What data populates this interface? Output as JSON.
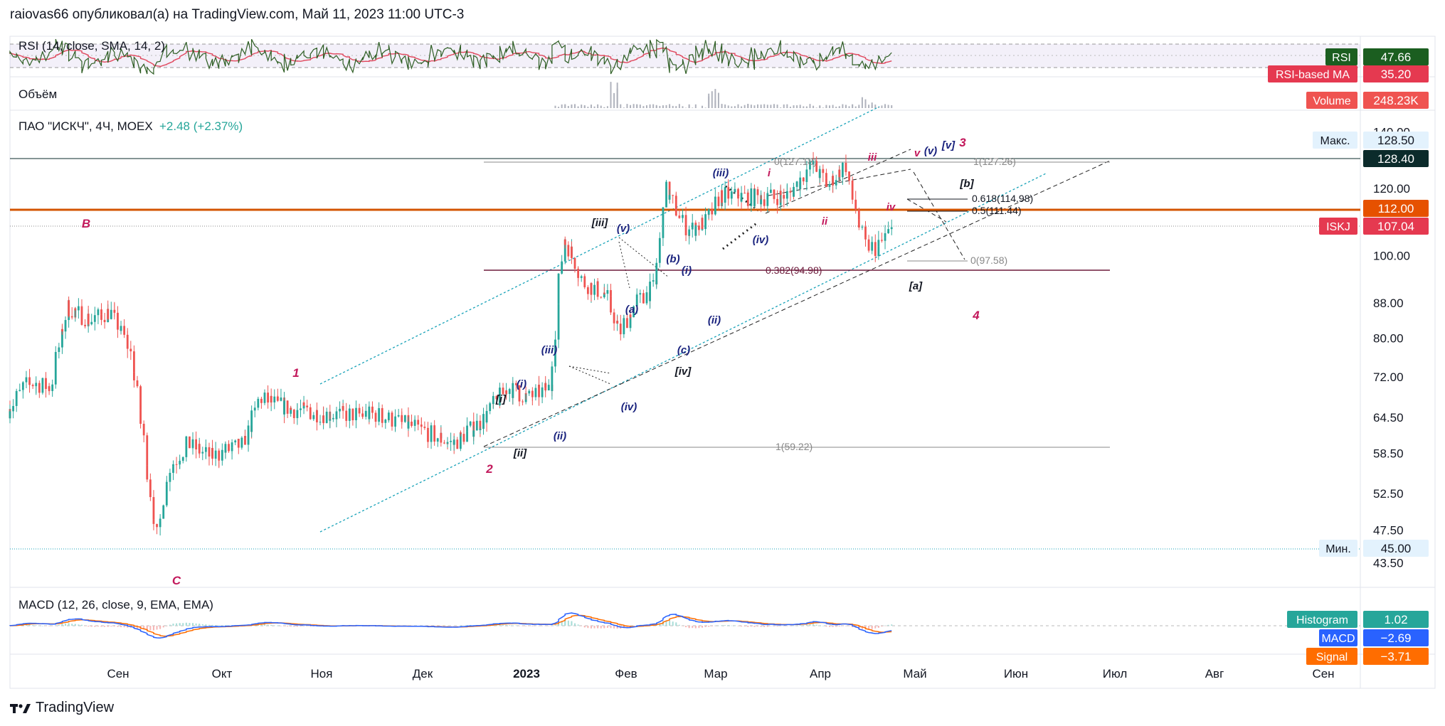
{
  "header": {
    "author_line": "raiovas66 опубликовал(а) на TradingView.com, Май 11, 2023 11:00 UTC-3"
  },
  "footer": {
    "brand": "TradingView"
  },
  "colors": {
    "up": "#26a69a",
    "down": "#ef5350",
    "rsi_line": "#2e5e24",
    "rsi_ma": "#e0495e",
    "macd": "#2962ff",
    "signal": "#ff6d00",
    "channel": "#17a2b8",
    "orange_line": "#d35400",
    "wave_red": "#c2185b",
    "wave_navy": "#1a237e"
  },
  "rsi_pane": {
    "title": "RSI (14, close, SMA, 14, 2)",
    "badges": [
      {
        "label": "RSI",
        "value": "47.66",
        "color": "#1b5e20"
      },
      {
        "label": "RSI-based MA",
        "value": "35.20",
        "color": "#e53950"
      }
    ]
  },
  "volume_pane": {
    "title": "Объём",
    "badge": {
      "label": "Volume",
      "value": "248.23K",
      "color": "#ef5350"
    }
  },
  "main_pane": {
    "symbol": "ПАО \"ИСКЧ\", 4Ч, MOEX",
    "change": "+2.48 (+2.37%)",
    "max_badge": {
      "label": "Макс.",
      "value": "128.50"
    },
    "min_badge": {
      "label": "Мин.",
      "value": "45.00"
    },
    "price_badges": [
      {
        "value": "128.40",
        "color": "#0b2b2b"
      },
      {
        "value": "112.00",
        "color": "#e65100"
      },
      {
        "label": "ISKJ",
        "value": "107.04",
        "color": "#e53950"
      }
    ],
    "price_ticks": [
      "140.00",
      "120.00",
      "100.00",
      "88.00",
      "80.00",
      "72.00",
      "64.50",
      "58.50",
      "52.50",
      "47.50",
      "43.50"
    ]
  },
  "macd_pane": {
    "title": "MACD (12, 26, close, 9, EMA, EMA)",
    "badges": [
      {
        "label": "Histogram",
        "value": "1.02",
        "color": "#26a69a"
      },
      {
        "label": "MACD",
        "value": "−2.69",
        "color": "#2962ff"
      },
      {
        "label": "Signal",
        "value": "−3.71",
        "color": "#ff6d00"
      }
    ]
  },
  "time_axis": {
    "labels": [
      "Сен",
      "Окт",
      "Ноя",
      "Дек",
      "2023",
      "Фев",
      "Мар",
      "Апр",
      "Май",
      "Июн",
      "Июл",
      "Авг",
      "Сен"
    ]
  },
  "fib_labels": [
    {
      "text": "0(127.18)",
      "color": "#888888"
    },
    {
      "text": "1(127.26)",
      "color": "#888888"
    },
    {
      "text": "0.618(114.98)",
      "color": "#131722"
    },
    {
      "text": "0.5(111.44)",
      "color": "#131722"
    },
    {
      "text": "0(97.58)",
      "color": "#888888"
    },
    {
      "text": "0.382(94.98)",
      "color": "#6d1b3c"
    },
    {
      "text": "1(59.22)",
      "color": "#888888"
    }
  ],
  "wave_labels": [
    {
      "text": "B",
      "color": "#c2185b"
    },
    {
      "text": "C",
      "color": "#c2185b"
    },
    {
      "text": "1",
      "color": "#c2185b"
    },
    {
      "text": "2",
      "color": "#c2185b"
    },
    {
      "text": "3",
      "color": "#c2185b"
    },
    {
      "text": "4",
      "color": "#c2185b"
    },
    {
      "text": "[i]",
      "color": "#131722"
    },
    {
      "text": "[ii]",
      "color": "#131722"
    },
    {
      "text": "[iii]",
      "color": "#131722"
    },
    {
      "text": "[iv]",
      "color": "#131722"
    },
    {
      "text": "[v]",
      "color": "#1a237e"
    },
    {
      "text": "[a]",
      "color": "#131722"
    },
    {
      "text": "[b]",
      "color": "#131722"
    },
    {
      "text": "(i)",
      "color": "#1a237e"
    },
    {
      "text": "(ii)",
      "color": "#1a237e"
    },
    {
      "text": "(iii)",
      "color": "#1a237e"
    },
    {
      "text": "(iv)",
      "color": "#1a237e"
    },
    {
      "text": "(i)",
      "color": "#1a237e"
    },
    {
      "text": "(ii)",
      "color": "#1a237e"
    },
    {
      "text": "(iii)",
      "color": "#1a237e"
    },
    {
      "text": "(iv)",
      "color": "#1a237e"
    },
    {
      "text": "(v)",
      "color": "#1a237e"
    },
    {
      "text": "(a)",
      "color": "#1a237e"
    },
    {
      "text": "(b)",
      "color": "#1a237e"
    },
    {
      "text": "(c)",
      "color": "#1a237e"
    },
    {
      "text": "(v)",
      "color": "#1a237e"
    },
    {
      "text": "i",
      "color": "#c2185b"
    },
    {
      "text": "ii",
      "color": "#c2185b"
    },
    {
      "text": "iii",
      "color": "#c2185b"
    },
    {
      "text": "iv",
      "color": "#c2185b"
    },
    {
      "text": "v",
      "color": "#c2185b"
    }
  ],
  "chart_data": {
    "type": "candlestick",
    "symbol": "ISKJ",
    "interval": "4H",
    "y_scale": "log",
    "ylim": [
      41,
      147
    ],
    "x_range": [
      "2022-08-14",
      "2023-09-25"
    ],
    "horizontal_levels": [
      128.4,
      112.0,
      107.04,
      45.0
    ],
    "price_path": [
      {
        "date": "2022-08-14",
        "close": 66
      },
      {
        "date": "2022-08-20",
        "close": 71
      },
      {
        "date": "2022-08-27",
        "close": 70
      },
      {
        "date": "2022-09-01",
        "close": 87
      },
      {
        "date": "2022-09-08",
        "close": 84
      },
      {
        "date": "2022-09-14",
        "close": 86
      },
      {
        "date": "2022-09-20",
        "close": 78
      },
      {
        "date": "2022-09-24",
        "close": 62
      },
      {
        "date": "2022-09-28",
        "close": 46
      },
      {
        "date": "2022-10-02",
        "close": 56
      },
      {
        "date": "2022-10-08",
        "close": 60
      },
      {
        "date": "2022-10-15",
        "close": 58
      },
      {
        "date": "2022-10-25",
        "close": 60
      },
      {
        "date": "2022-10-30",
        "close": 68
      },
      {
        "date": "2022-11-08",
        "close": 66
      },
      {
        "date": "2022-11-20",
        "close": 65
      },
      {
        "date": "2022-12-05",
        "close": 65
      },
      {
        "date": "2022-12-20",
        "close": 62
      },
      {
        "date": "2022-12-28",
        "close": 60
      },
      {
        "date": "2023-01-06",
        "close": 64
      },
      {
        "date": "2023-01-14",
        "close": 70
      },
      {
        "date": "2023-01-20",
        "close": 68
      },
      {
        "date": "2023-01-27",
        "close": 70
      },
      {
        "date": "2023-01-31",
        "close": 105
      },
      {
        "date": "2023-02-06",
        "close": 93
      },
      {
        "date": "2023-02-13",
        "close": 90
      },
      {
        "date": "2023-02-17",
        "close": 81
      },
      {
        "date": "2023-02-22",
        "close": 88
      },
      {
        "date": "2023-02-28",
        "close": 92
      },
      {
        "date": "2023-03-03",
        "close": 120
      },
      {
        "date": "2023-03-10",
        "close": 107
      },
      {
        "date": "2023-03-16",
        "close": 110
      },
      {
        "date": "2023-03-20",
        "close": 118
      },
      {
        "date": "2023-04-01",
        "close": 117
      },
      {
        "date": "2023-04-10",
        "close": 118
      },
      {
        "date": "2023-04-17",
        "close": 128
      },
      {
        "date": "2023-04-22",
        "close": 121
      },
      {
        "date": "2023-04-27",
        "close": 128
      },
      {
        "date": "2023-04-30",
        "close": 115
      },
      {
        "date": "2023-05-03",
        "close": 103
      },
      {
        "date": "2023-05-07",
        "close": 102
      },
      {
        "date": "2023-05-11",
        "close": 107
      }
    ]
  }
}
